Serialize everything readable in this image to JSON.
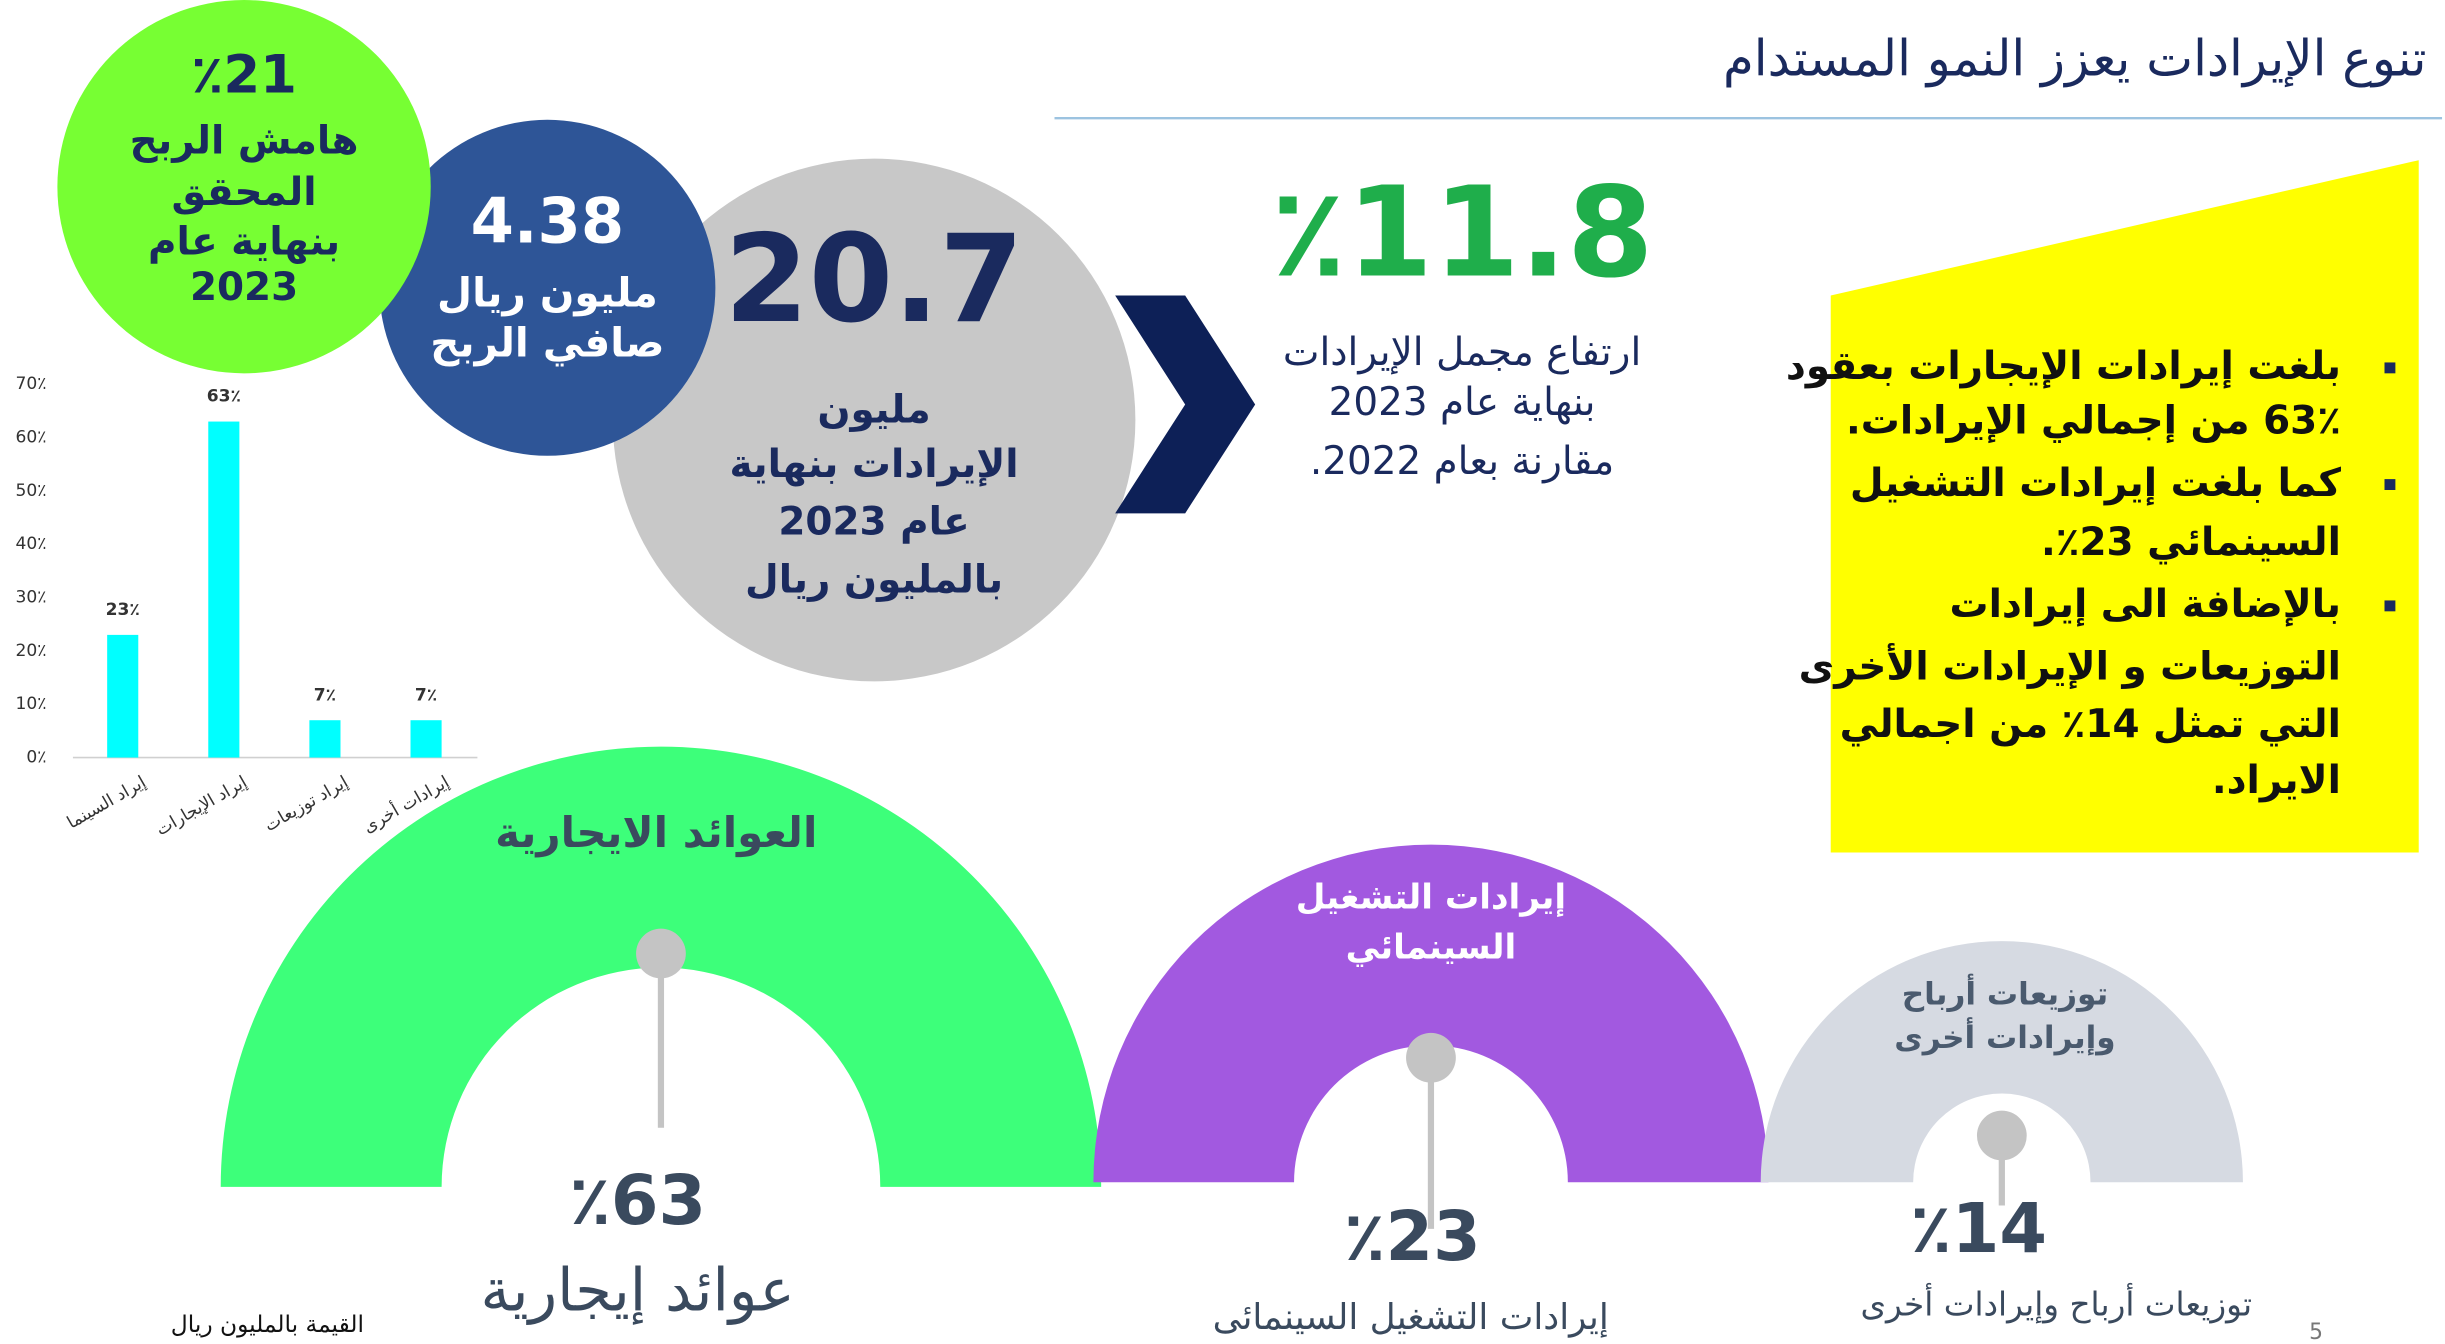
{
  "title": "تنوع الإيرادات يعزز النمو المستدام",
  "profit_margin": {
    "value": "٪21",
    "lines": [
      "هامش الربح",
      "المحقق",
      "بنهاية عام",
      "2023"
    ]
  },
  "net_profit": {
    "value": "4.38",
    "lines": [
      "مليون ريال",
      "صافي الربح"
    ]
  },
  "revenue": {
    "value": "20.7",
    "lines": [
      "مليون",
      "الإيرادات بنهاية",
      "عام 2023",
      "بالمليون ريال"
    ]
  },
  "growth": {
    "value": "٪11.8",
    "lines": [
      "ارتفاع مجمل  الإيرادات",
      "بنهاية عام 2023",
      "مقارنة بعام  2022."
    ]
  },
  "bullets": [
    [
      "بلغت إيرادات الإيجارات بعقود",
      "63٪ من إجمالي الإيرادات."
    ],
    [
      "كما بلغت إيرادات التشغيل",
      "السينمائي 23٪."
    ],
    [
      "بالإضافة الى إيرادات",
      "التوزيعات و الإيرادات الأخرى",
      "التي تمثل 14٪ من اجمالي",
      "الايراد."
    ]
  ],
  "chart_data": {
    "type": "bar",
    "categories": [
      "إيراد السينما",
      "إيراد الإيجارات",
      "إيراد توزيعات",
      "إيرادات أخرى"
    ],
    "values": [
      23,
      63,
      7,
      7
    ],
    "value_labels": [
      "23٪",
      "63٪",
      "7٪",
      "7٪"
    ],
    "color": "#00ffff",
    "ylim": [
      0,
      70
    ],
    "yticks": [
      {
        "value": 0,
        "label": "0٪"
      },
      {
        "value": 10,
        "label": "10٪"
      },
      {
        "value": 20,
        "label": "20٪"
      },
      {
        "value": 30,
        "label": "30٪"
      },
      {
        "value": 40,
        "label": "40٪"
      },
      {
        "value": 50,
        "label": "50٪"
      },
      {
        "value": 60,
        "label": "60٪"
      },
      {
        "value": 70,
        "label": "70٪"
      }
    ],
    "grid": false
  },
  "segments": [
    {
      "title": [
        "العوائد الايجارية"
      ],
      "value": "٪63",
      "caption": "عوائد إيجارية"
    },
    {
      "title": [
        "إيرادات التشغيل",
        "السينمائي"
      ],
      "value": "٪23",
      "caption": "إيرادات التشغيل السينمائى"
    },
    {
      "title": [
        "توزيعات أرباح",
        "وإيرادات أخرى"
      ],
      "value": "٪14",
      "caption": "توزيعات أرباح وإيرادات أخرى"
    }
  ],
  "footnote": "القيمة بالمليون ريال",
  "page_number": "5"
}
